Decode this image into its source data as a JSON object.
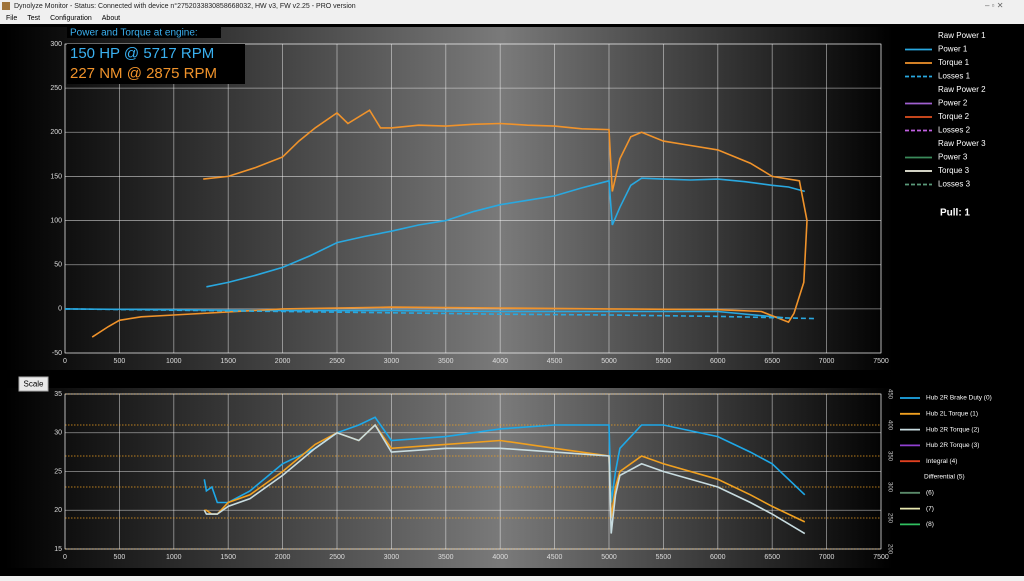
{
  "window": {
    "title": "Dynolyze Monitor - Status: Connected with device n°2752033830858668032, HW v3, FW v2.25 - PRO version",
    "menu": [
      "File",
      "Test",
      "Configuration",
      "About"
    ]
  },
  "overlay": {
    "title": "Power and Torque at engine:",
    "power": "150 HP @ 5717 RPM",
    "torque": "227 NM @ 2875 RPM"
  },
  "pull": "Pull: 1",
  "scale_button": "Scale",
  "chart_data": [
    {
      "type": "line",
      "xlim": [
        0,
        7500
      ],
      "xticks": [
        0,
        500,
        1000,
        1500,
        2000,
        2500,
        3000,
        3500,
        4000,
        4500,
        5000,
        5500,
        6000,
        6500,
        7000,
        7500
      ],
      "ylim": [
        -50,
        300
      ],
      "yticks": [
        -50,
        0,
        50,
        100,
        150,
        200,
        250,
        300
      ],
      "grid": true,
      "groups": [
        {
          "title": "Raw Power 1",
          "series": [
            {
              "name": "Power 1",
              "color": "#29a8e0",
              "dash": false,
              "x": [
                1300,
                1500,
                1750,
                2000,
                2250,
                2500,
                2750,
                3000,
                3250,
                3500,
                3750,
                4000,
                4250,
                4500,
                4750,
                5000,
                5030,
                5100,
                5200,
                5300,
                5500,
                5750,
                6000,
                6250,
                6500,
                6650,
                6800,
                null,
                0,
                1000,
                2000,
                3000,
                4000,
                5000,
                6000,
                6600
              ],
              "values": [
                25,
                30,
                38,
                47,
                60,
                75,
                82,
                88,
                95,
                100,
                110,
                118,
                123,
                128,
                137,
                145,
                95,
                115,
                140,
                148,
                147,
                146,
                147,
                144,
                140,
                138,
                133,
                null,
                0,
                -1,
                -2,
                -2,
                -3,
                -3,
                -3,
                -10
              ]
            },
            {
              "name": "Torque 1",
              "color": "#f0932b",
              "dash": false,
              "x": [
                1270,
                1500,
                1750,
                2000,
                2150,
                2300,
                2500,
                2600,
                2800,
                2900,
                3000,
                3250,
                3500,
                3750,
                4000,
                4250,
                4500,
                4750,
                5000,
                5030,
                5100,
                5200,
                5300,
                5500,
                5750,
                6000,
                6300,
                6500,
                6750,
                6820,
                6790,
                6700,
                6650,
                6400,
                6000,
                5000,
                4000,
                3000,
                2000,
                1000,
                700,
                500,
                400,
                250
              ],
              "values": [
                147,
                150,
                160,
                172,
                190,
                205,
                222,
                210,
                225,
                205,
                205,
                208,
                207,
                209,
                210,
                208,
                207,
                204,
                203,
                133,
                170,
                195,
                200,
                190,
                185,
                180,
                165,
                150,
                145,
                100,
                30,
                -5,
                -15,
                -3,
                -1,
                0,
                1,
                2,
                0,
                -7,
                -9,
                -13,
                -20,
                -32
              ]
            },
            {
              "name": "Losses 1",
              "color": "#29a8e0",
              "dash": true,
              "x": [
                0,
                1000,
                2000,
                3000,
                4000,
                5000,
                6000,
                6900
              ],
              "values": [
                0,
                -1.5,
                -3,
                -4.5,
                -6,
                -7,
                -8.5,
                -11
              ]
            }
          ]
        },
        {
          "title": "Raw Power 2",
          "series": [
            {
              "name": "Power 2",
              "color": "#a060d0",
              "dash": false,
              "x": [],
              "values": []
            },
            {
              "name": "Torque 2",
              "color": "#e05020",
              "dash": false,
              "x": [],
              "values": []
            },
            {
              "name": "Losses 2",
              "color": "#c060e0",
              "dash": true,
              "x": [],
              "values": []
            }
          ]
        },
        {
          "title": "Raw Power 3",
          "series": [
            {
              "name": "Power 3",
              "color": "#3a8a5a",
              "dash": false,
              "x": [],
              "values": []
            },
            {
              "name": "Torque 3",
              "color": "#f0f0e0",
              "dash": false,
              "x": [],
              "values": []
            },
            {
              "name": "Losses 3",
              "color": "#5a9a7a",
              "dash": true,
              "x": [],
              "values": []
            }
          ]
        }
      ]
    },
    {
      "type": "line",
      "xlim": [
        0,
        7500
      ],
      "xticks": [
        0,
        500,
        1000,
        1500,
        2000,
        2500,
        3000,
        3500,
        4000,
        4500,
        5000,
        5500,
        6000,
        6500,
        7000,
        7500
      ],
      "ylim": [
        15,
        35
      ],
      "yticks": [
        15,
        20,
        25,
        30,
        35
      ],
      "y2lim": [
        200,
        450
      ],
      "y2ticks": [
        200,
        250,
        300,
        350,
        400,
        450
      ],
      "grid": true,
      "series": [
        {
          "name": "Hub 2R Brake Duty (0)",
          "color": "#1ea8e8",
          "x": [
            1280,
            1300,
            1350,
            1400,
            1500,
            1700,
            2000,
            2300,
            2500,
            2700,
            2850,
            3000,
            3500,
            4000,
            4500,
            5000,
            5020,
            5060,
            5100,
            5300,
            5500,
            6000,
            6300,
            6500,
            6800
          ],
          "values": [
            24,
            22.5,
            23,
            21,
            21,
            22.5,
            26,
            28,
            30,
            31,
            32,
            29,
            29.5,
            30.5,
            31,
            31,
            21,
            25,
            28,
            31,
            31,
            29.5,
            27.5,
            26,
            22
          ]
        },
        {
          "name": "Hub 2L Torque (1)",
          "color": "#f0a020",
          "x": [
            1280,
            1300,
            1350,
            1400,
            1500,
            1700,
            2000,
            2300,
            2500,
            2700,
            2850,
            3000,
            3500,
            4000,
            4500,
            5000,
            5020,
            5060,
            5100,
            5300,
            5500,
            6000,
            6300,
            6500,
            6800
          ],
          "values": [
            20,
            20,
            19.5,
            19.5,
            21,
            22,
            25,
            28.5,
            30,
            29,
            31,
            28,
            28.5,
            29,
            28,
            27,
            19,
            23,
            25,
            27,
            26,
            24,
            22,
            20.5,
            18.5
          ]
        },
        {
          "name": "Hub 2R Torque (2)",
          "color": "#c8dce0",
          "x": [
            1280,
            1300,
            1350,
            1400,
            1500,
            1700,
            2000,
            2300,
            2500,
            2700,
            2850,
            3000,
            3500,
            4000,
            4500,
            5000,
            5020,
            5060,
            5100,
            5300,
            5500,
            6000,
            6300,
            6500,
            6800
          ],
          "values": [
            20,
            19.5,
            19.5,
            19.5,
            20.5,
            21.5,
            24.5,
            28,
            30,
            29,
            31,
            27.5,
            28,
            28,
            27.5,
            27,
            17,
            22,
            24.5,
            26,
            25,
            23,
            21,
            19.5,
            17
          ]
        },
        {
          "name": "Hub 2R Torque (3)",
          "color": "#9040d0",
          "x": [],
          "values": []
        },
        {
          "name": "Integral (4)",
          "color": "#e04020",
          "x": [],
          "values": []
        },
        {
          "name": "Differential (5)",
          "x": [],
          "values": []
        },
        {
          "name": "(6)",
          "color": "#5a8a6a",
          "x": [],
          "values": []
        },
        {
          "name": "(7)",
          "color": "#e8e8b0",
          "x": [],
          "values": []
        },
        {
          "name": "(8)",
          "color": "#30c060",
          "x": [],
          "values": []
        }
      ]
    }
  ]
}
